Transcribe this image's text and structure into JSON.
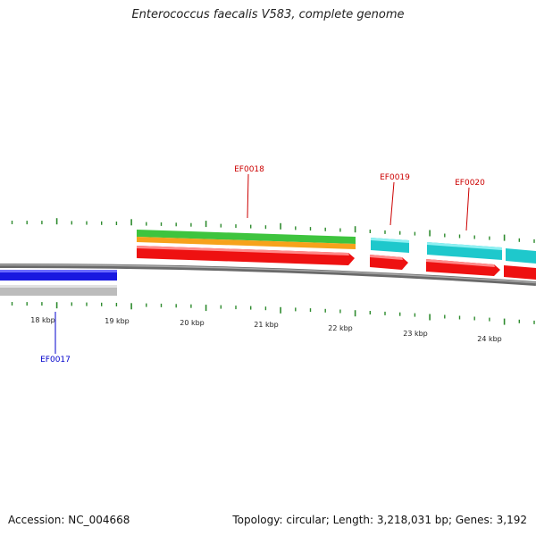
{
  "title": "Enterococcus faecalis V583, complete genome",
  "colors": {
    "backbone": "#7f7f7f",
    "tick": "#2e8b2e",
    "gene_label_forward": "#cc0000",
    "gene_label_reverse": "#0000cc",
    "red": "#ee1111",
    "blue": "#1818e0",
    "green": "#3ec43e",
    "orange": "#f7a21b",
    "cyan": "#1ec8cc",
    "gray": "#bcbcbc"
  },
  "ticks": [
    {
      "label": "18 kbp"
    },
    {
      "label": "19 kbp"
    },
    {
      "label": "20 kbp"
    },
    {
      "label": "21 kbp"
    },
    {
      "label": "22 kbp"
    },
    {
      "label": "23 kbp"
    },
    {
      "label": "24 kbp"
    }
  ],
  "genes": [
    {
      "label": "EF0017",
      "strand": "reverse"
    },
    {
      "label": "EF0018",
      "strand": "forward"
    },
    {
      "label": "EF0019",
      "strand": "forward"
    },
    {
      "label": "EF0020",
      "strand": "forward"
    }
  ],
  "footer": {
    "accession": "Accession: NC_004668",
    "topology": "Topology: circular; Length: 3,218,031 bp; Genes: 3,192"
  }
}
